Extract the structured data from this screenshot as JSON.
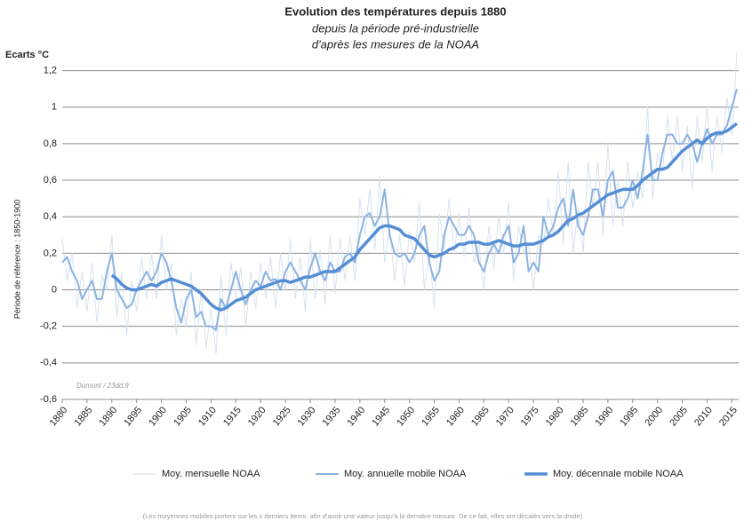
{
  "chart_data": {
    "type": "line",
    "title": "Evolution des températures depuis 1880",
    "subtitle": [
      "depuis la période pré-industrielle",
      "d'après les mesures de la NOAA"
    ],
    "y_unit_label": "Ecarts °C",
    "y_axis_label": "Période de référence : 1850-1900",
    "watermark": "Dumont / 23dd.fr",
    "footnote": "(Les moyennes mobiles portent sur les x derniers items,  afin  d'avoir une valeur  jusqu'à la dernière mesure. De ce fait, elles ont décalés vers la droite)",
    "x": [
      1880,
      1881,
      1882,
      1883,
      1884,
      1885,
      1886,
      1887,
      1888,
      1889,
      1890,
      1891,
      1892,
      1893,
      1894,
      1895,
      1896,
      1897,
      1898,
      1899,
      1900,
      1901,
      1902,
      1903,
      1904,
      1905,
      1906,
      1907,
      1908,
      1909,
      1910,
      1911,
      1912,
      1913,
      1914,
      1915,
      1916,
      1917,
      1918,
      1919,
      1920,
      1921,
      1922,
      1923,
      1924,
      1925,
      1926,
      1927,
      1928,
      1929,
      1930,
      1931,
      1932,
      1933,
      1934,
      1935,
      1936,
      1937,
      1938,
      1939,
      1940,
      1941,
      1942,
      1943,
      1944,
      1945,
      1946,
      1947,
      1948,
      1949,
      1950,
      1951,
      1952,
      1953,
      1954,
      1955,
      1956,
      1957,
      1958,
      1959,
      1960,
      1961,
      1962,
      1963,
      1964,
      1965,
      1966,
      1967,
      1968,
      1969,
      1970,
      1971,
      1972,
      1973,
      1974,
      1975,
      1976,
      1977,
      1978,
      1979,
      1980,
      1981,
      1982,
      1983,
      1984,
      1985,
      1986,
      1987,
      1988,
      1989,
      1990,
      1991,
      1992,
      1993,
      1994,
      1995,
      1996,
      1997,
      1998,
      1999,
      2000,
      2001,
      2002,
      2003,
      2004,
      2005,
      2006,
      2007,
      2008,
      2009,
      2010,
      2011,
      2012,
      2013,
      2014,
      2015,
      2016
    ],
    "series": [
      {
        "name": "Moy. mensuelle NOAA",
        "color": "#d6e2f0",
        "width": 1,
        "values": [
          0.28,
          0.05,
          0.2,
          -0.1,
          0.1,
          -0.12,
          0.15,
          -0.18,
          0.08,
          0.0,
          0.3,
          -0.15,
          0.1,
          -0.25,
          0.05,
          -0.12,
          0.18,
          -0.05,
          0.2,
          -0.05,
          0.3,
          0.0,
          0.15,
          -0.25,
          -0.05,
          -0.2,
          0.1,
          -0.3,
          0.0,
          -0.32,
          -0.1,
          -0.35,
          0.08,
          -0.25,
          0.15,
          -0.05,
          0.12,
          -0.2,
          0.1,
          -0.1,
          0.15,
          -0.05,
          0.18,
          -0.1,
          0.2,
          0.0,
          0.28,
          -0.05,
          0.18,
          -0.12,
          0.28,
          -0.05,
          0.22,
          -0.08,
          0.3,
          -0.02,
          0.28,
          0.05,
          0.3,
          0.05,
          0.5,
          0.3,
          0.55,
          0.22,
          0.62,
          0.15,
          0.35,
          0.05,
          0.3,
          0.02,
          0.32,
          0.15,
          0.48,
          0.0,
          0.2,
          -0.1,
          0.42,
          0.22,
          0.5,
          0.2,
          0.42,
          0.18,
          0.45,
          0.15,
          0.25,
          0.0,
          0.35,
          0.12,
          0.4,
          0.2,
          0.48,
          0.05,
          0.35,
          0.2,
          0.25,
          0.0,
          0.3,
          0.25,
          0.5,
          0.3,
          0.65,
          0.25,
          0.7,
          0.2,
          0.45,
          0.2,
          0.7,
          0.45,
          0.7,
          0.3,
          0.8,
          0.35,
          0.6,
          0.35,
          0.7,
          0.45,
          0.65,
          0.5,
          1.0,
          0.5,
          0.75,
          0.65,
          0.95,
          0.7,
          0.95,
          0.65,
          0.9,
          0.55,
          0.95,
          0.7,
          1.0,
          0.65,
          0.95,
          0.75,
          1.05,
          0.85,
          1.3
        ]
      },
      {
        "name": "Moy. annuelle mobile NOAA",
        "color": "#8db3e2",
        "width": 2,
        "values": [
          0.15,
          0.18,
          0.1,
          0.05,
          -0.05,
          0.0,
          0.05,
          -0.05,
          -0.05,
          0.1,
          0.2,
          0.0,
          -0.05,
          -0.1,
          -0.08,
          0.0,
          0.05,
          0.1,
          0.05,
          0.1,
          0.2,
          0.15,
          0.05,
          -0.1,
          -0.18,
          -0.05,
          0.0,
          -0.15,
          -0.12,
          -0.2,
          -0.2,
          -0.22,
          -0.05,
          -0.1,
          0.0,
          0.1,
          0.0,
          -0.08,
          0.0,
          0.05,
          0.02,
          0.1,
          0.05,
          0.06,
          0.0,
          0.1,
          0.15,
          0.1,
          0.05,
          0.0,
          0.12,
          0.2,
          0.1,
          0.05,
          0.15,
          0.1,
          0.1,
          0.18,
          0.2,
          0.15,
          0.3,
          0.4,
          0.42,
          0.35,
          0.4,
          0.55,
          0.3,
          0.2,
          0.18,
          0.2,
          0.15,
          0.2,
          0.3,
          0.35,
          0.15,
          0.05,
          0.1,
          0.3,
          0.4,
          0.35,
          0.3,
          0.3,
          0.35,
          0.3,
          0.15,
          0.1,
          0.2,
          0.25,
          0.2,
          0.3,
          0.35,
          0.15,
          0.2,
          0.35,
          0.1,
          0.15,
          0.1,
          0.4,
          0.3,
          0.35,
          0.45,
          0.5,
          0.35,
          0.55,
          0.35,
          0.3,
          0.4,
          0.55,
          0.55,
          0.4,
          0.6,
          0.65,
          0.45,
          0.45,
          0.5,
          0.6,
          0.5,
          0.65,
          0.85,
          0.6,
          0.6,
          0.75,
          0.85,
          0.85,
          0.8,
          0.8,
          0.85,
          0.8,
          0.7,
          0.8,
          0.88,
          0.8,
          0.85,
          0.85,
          0.9,
          1.0,
          1.1
        ]
      },
      {
        "name": "Moy. décennale mobile NOAA",
        "color": "#558ed5",
        "width": 3.5,
        "values": [
          null,
          null,
          null,
          null,
          null,
          null,
          null,
          null,
          null,
          null,
          0.08,
          0.06,
          0.03,
          0.01,
          0.0,
          0.0,
          0.01,
          0.02,
          0.03,
          0.02,
          0.04,
          0.05,
          0.06,
          0.05,
          0.04,
          0.03,
          0.02,
          0.0,
          -0.02,
          -0.05,
          -0.08,
          -0.1,
          -0.11,
          -0.1,
          -0.08,
          -0.06,
          -0.05,
          -0.04,
          -0.02,
          0.0,
          0.01,
          0.02,
          0.03,
          0.04,
          0.05,
          0.05,
          0.04,
          0.05,
          0.06,
          0.07,
          0.07,
          0.08,
          0.09,
          0.1,
          0.1,
          0.1,
          0.12,
          0.14,
          0.16,
          0.18,
          0.22,
          0.25,
          0.28,
          0.31,
          0.34,
          0.35,
          0.35,
          0.34,
          0.33,
          0.3,
          0.29,
          0.28,
          0.25,
          0.22,
          0.19,
          0.18,
          0.19,
          0.2,
          0.22,
          0.23,
          0.25,
          0.25,
          0.26,
          0.26,
          0.26,
          0.25,
          0.25,
          0.26,
          0.27,
          0.26,
          0.25,
          0.24,
          0.24,
          0.25,
          0.25,
          0.25,
          0.26,
          0.27,
          0.29,
          0.3,
          0.32,
          0.35,
          0.38,
          0.39,
          0.41,
          0.42,
          0.44,
          0.46,
          0.48,
          0.5,
          0.52,
          0.53,
          0.54,
          0.55,
          0.55,
          0.55,
          0.57,
          0.6,
          0.62,
          0.64,
          0.66,
          0.66,
          0.67,
          0.7,
          0.73,
          0.76,
          0.78,
          0.8,
          0.82,
          0.8,
          0.83,
          0.85,
          0.86,
          0.86,
          0.87,
          0.89,
          0.91
        ]
      }
    ],
    "xlim": [
      1880,
      2016
    ],
    "xticks": [
      1880,
      1885,
      1890,
      1895,
      1900,
      1905,
      1910,
      1915,
      1920,
      1925,
      1930,
      1935,
      1940,
      1945,
      1950,
      1955,
      1960,
      1965,
      1970,
      1975,
      1980,
      1985,
      1990,
      1995,
      2000,
      2005,
      2010,
      2015
    ],
    "ylim": [
      -0.6,
      1.3
    ],
    "yticks": [
      {
        "value": -0.6,
        "label": "-0,6"
      },
      {
        "value": -0.4,
        "label": "-0,4"
      },
      {
        "value": -0.2,
        "label": "-0,2"
      },
      0,
      {
        "value": 0.2,
        "label": "0,2"
      },
      {
        "value": 0.4,
        "label": "0,4"
      },
      {
        "value": 0.6,
        "label": "0,6"
      },
      {
        "value": 0.8,
        "label": "0,8"
      },
      1,
      {
        "value": 1.2,
        "label": "1,2"
      }
    ],
    "grid": true,
    "legend": "bottom"
  }
}
